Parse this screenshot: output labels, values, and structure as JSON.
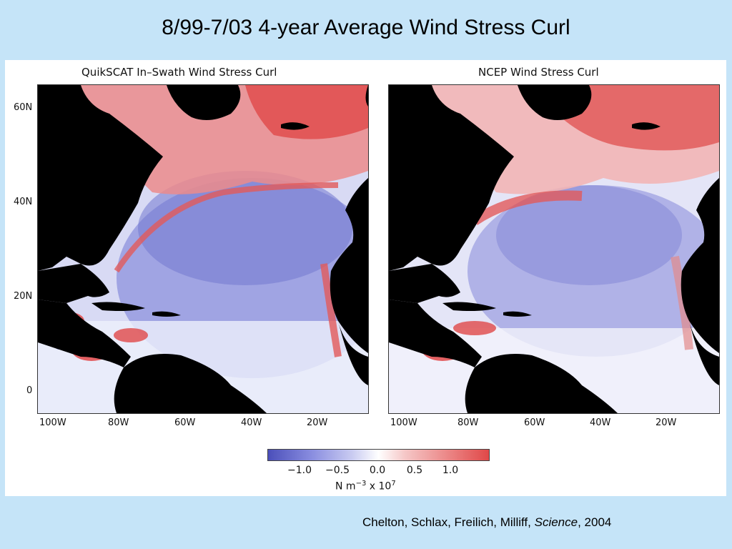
{
  "slide": {
    "title": "8/99-7/03 4-year Average Wind Stress Curl"
  },
  "panels": [
    {
      "title": "QuikSCAT In–Swath Wind Stress Curl"
    },
    {
      "title": "NCEP Wind Stress Curl"
    }
  ],
  "axes": {
    "lat_ticks": [
      "60N",
      "40N",
      "20N",
      "0"
    ],
    "lon_ticks": [
      "100W",
      "80W",
      "60W",
      "40W",
      "20W"
    ]
  },
  "colorbar": {
    "ticks": [
      "−1.0",
      "−0.5",
      "0.0",
      "0.5",
      "1.0"
    ],
    "unit_prefix": "N m",
    "unit_exp1": "−3",
    "unit_mid": " x 10",
    "unit_exp2": "7",
    "colors": {
      "negative": "#4b4fba",
      "zero": "#ffffff",
      "positive": "#e04848"
    }
  },
  "citation": {
    "authors": "Chelton, Schlax, Freilich, Milliff, ",
    "journal": "Science",
    "year": ", 2004"
  },
  "colors": {
    "background": "#c5e4f8",
    "land": "#000000"
  }
}
